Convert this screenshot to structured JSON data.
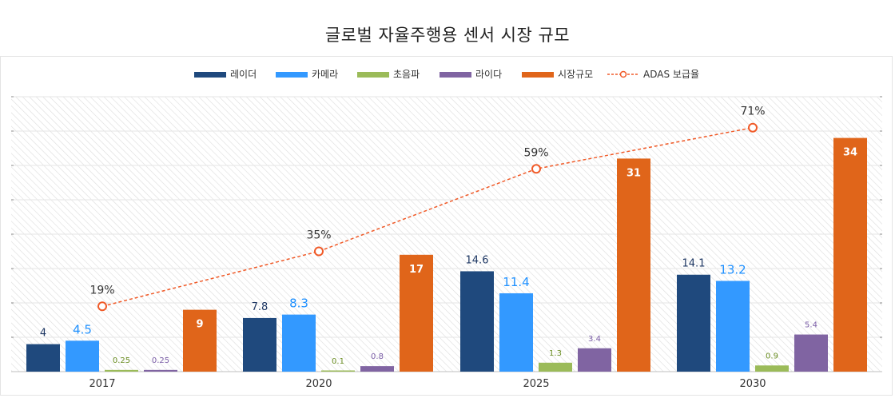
{
  "title": "글로벌 자율주행용 센서 시장 규모",
  "chart_data": {
    "type": "bar",
    "categories": [
      "2017",
      "2020",
      "2025",
      "2030"
    ],
    "series": [
      {
        "name": "레이더",
        "color": "#1f497d",
        "values": [
          4,
          7.8,
          14.6,
          14.1
        ],
        "labels": [
          "4",
          "7.8",
          "14.6",
          "14.1"
        ],
        "label_color": "#1f3864"
      },
      {
        "name": "카메라",
        "color": "#3399ff",
        "values": [
          4.5,
          8.3,
          11.4,
          13.2
        ],
        "labels": [
          "4.5",
          "8.3",
          "11.4",
          "13.2"
        ],
        "label_color": "#1e90ff"
      },
      {
        "name": "초음파",
        "color": "#9bbb59",
        "values": [
          0.25,
          0.1,
          1.3,
          0.9
        ],
        "labels": [
          "0.25",
          "0.1",
          "1.3",
          "0.9"
        ],
        "label_color": "#6b8e23"
      },
      {
        "name": "라이다",
        "color": "#8064a2",
        "values": [
          0.25,
          0.8,
          3.4,
          5.4
        ],
        "labels": [
          "0.25",
          "0.8",
          "3.4",
          "5.4"
        ],
        "label_color": "#7b5ea7"
      },
      {
        "name": "시장규모",
        "color": "#e0651a",
        "values": [
          9,
          17,
          31,
          34
        ],
        "labels": [
          "9",
          "17",
          "31",
          "34"
        ],
        "label_color": "#ffffff"
      }
    ],
    "line_series": {
      "name": "ADAS 보급율",
      "color": "#f05a28",
      "values": [
        19,
        35,
        59,
        71
      ],
      "labels": [
        "19%",
        "35%",
        "59%",
        "71%"
      ],
      "unit": "%"
    },
    "ylim": [
      0,
      40
    ],
    "ylim_secondary": [
      0,
      80
    ],
    "grid": true,
    "legend": "top-center",
    "xlabel": "",
    "ylabel": ""
  }
}
